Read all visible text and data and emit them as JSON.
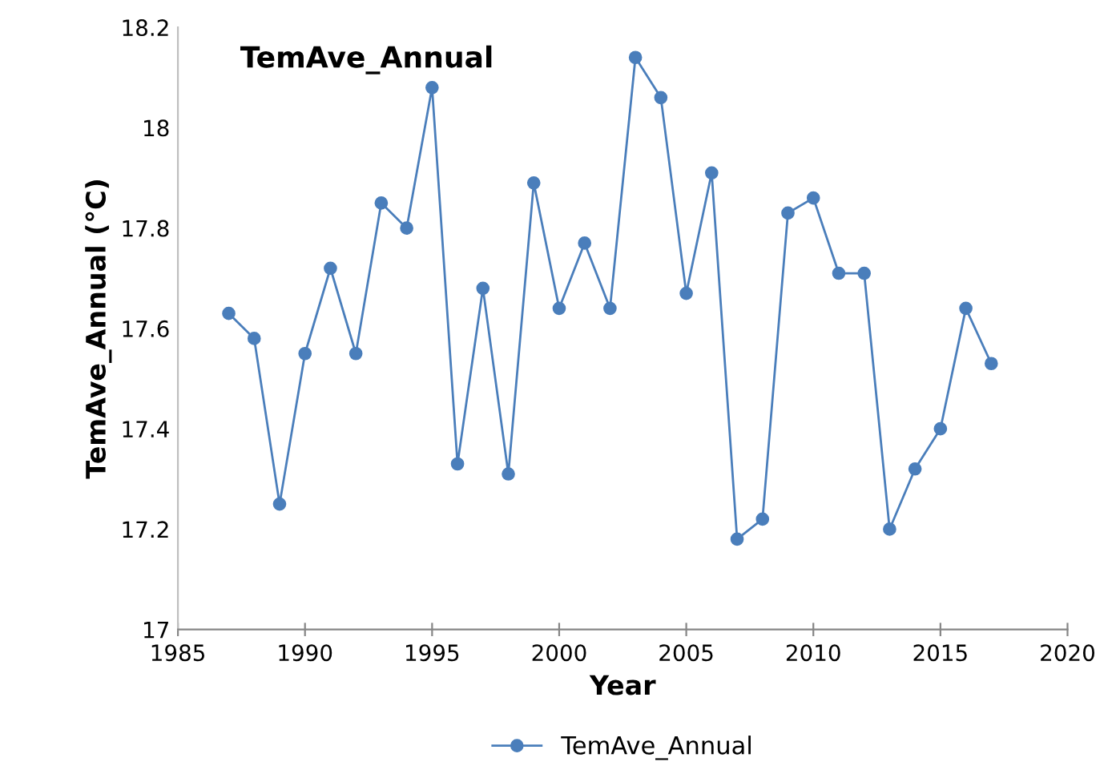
{
  "chart_data": {
    "type": "line",
    "title": "TemAve_Annual",
    "xlabel": "Year",
    "ylabel": "TemAve_Annual (°C)",
    "x": [
      1987,
      1988,
      1989,
      1990,
      1991,
      1992,
      1993,
      1994,
      1995,
      1996,
      1997,
      1998,
      1999,
      2000,
      2001,
      2002,
      2003,
      2004,
      2005,
      2006,
      2007,
      2008,
      2009,
      2010,
      2011,
      2012,
      2013,
      2014,
      2015,
      2016,
      2017
    ],
    "series": [
      {
        "name": "TemAve_Annual",
        "color": "#4a7ebb",
        "values": [
          17.63,
          17.58,
          17.25,
          17.55,
          17.72,
          17.55,
          17.85,
          17.8,
          18.08,
          17.33,
          17.68,
          17.31,
          17.89,
          17.64,
          17.77,
          17.64,
          18.14,
          18.06,
          17.67,
          17.91,
          17.18,
          17.22,
          17.83,
          17.86,
          17.71,
          17.71,
          17.2,
          17.32,
          17.4,
          17.64,
          17.53
        ]
      }
    ],
    "xlim": [
      1985,
      2020
    ],
    "xticks": [
      1985,
      1990,
      1995,
      2000,
      2005,
      2010,
      2015,
      2020
    ],
    "ylim": [
      17,
      18.2
    ],
    "yticks": [
      17,
      17.2,
      17.4,
      17.6,
      17.8,
      18,
      18.2
    ],
    "grid": false,
    "legend": "bottom",
    "marker": "circle",
    "line_style": "solid"
  }
}
